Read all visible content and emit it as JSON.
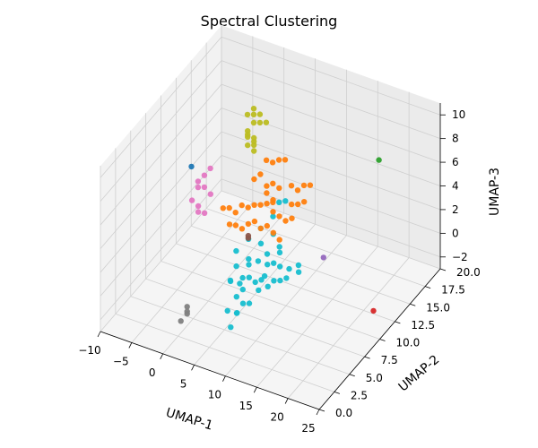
{
  "chart_data": {
    "type": "scatter",
    "projection": "3d",
    "title": "Spectral Clustering",
    "xlabel": "UMAP-1",
    "ylabel": "UMAP-2",
    "zlabel": "UMAP-3",
    "xlim": [
      -10,
      25
    ],
    "ylim": [
      0,
      20
    ],
    "zlim": [
      -3,
      11
    ],
    "x_ticks": [
      "−10",
      "−5",
      "0",
      "5",
      "10",
      "15",
      "20",
      "25"
    ],
    "x_tick_values": [
      -10,
      -5,
      0,
      5,
      10,
      15,
      20,
      25
    ],
    "y_ticks": [
      "0.0",
      "2.5",
      "5.0",
      "7.5",
      "10.0",
      "12.5",
      "15.0",
      "17.5",
      "20.0"
    ],
    "y_tick_values": [
      0,
      2.5,
      5,
      7.5,
      10,
      12.5,
      15,
      17.5,
      20
    ],
    "z_ticks": [
      "−2",
      "0",
      "2",
      "4",
      "6",
      "8",
      "10"
    ],
    "z_tick_values": [
      -2,
      0,
      2,
      4,
      6,
      8,
      10
    ],
    "grid": true,
    "legend": "none",
    "series": [
      {
        "color": "#17becf",
        "points": [
          [
            5,
            6,
            0.5
          ],
          [
            6,
            6.5,
            0.2
          ],
          [
            7,
            7,
            0.6
          ],
          [
            8,
            7,
            0.4
          ],
          [
            9,
            7.5,
            0.8
          ],
          [
            10,
            8,
            0.3
          ],
          [
            6,
            8,
            0.9
          ],
          [
            7,
            8.5,
            1.1
          ],
          [
            8,
            9,
            0.7
          ],
          [
            9,
            9,
            1.0
          ],
          [
            5,
            8,
            -0.4
          ],
          [
            6,
            7,
            -0.6
          ],
          [
            7,
            6,
            -1.0
          ],
          [
            8,
            6,
            -0.8
          ],
          [
            4,
            7,
            -0.2
          ],
          [
            5,
            9,
            0.6
          ],
          [
            10,
            9,
            0.9
          ],
          [
            11,
            9.5,
            0.6
          ],
          [
            12,
            10,
            0.8
          ],
          [
            11,
            8,
            0.5
          ],
          [
            9,
            10,
            1.3
          ],
          [
            8,
            11,
            1.0
          ],
          [
            7,
            10,
            0.8
          ],
          [
            6,
            10,
            1.5
          ],
          [
            5,
            7,
            -1.4
          ],
          [
            6,
            6,
            -2.0
          ],
          [
            5,
            5.5,
            -1.7
          ],
          [
            7,
            5,
            -1.2
          ],
          [
            6,
            5,
            -2.6
          ],
          [
            8,
            8,
            0.0
          ],
          [
            9,
            6.5,
            0.2
          ],
          [
            10,
            7,
            0.4
          ],
          [
            12,
            8,
            0.9
          ],
          [
            13,
            9,
            1.0
          ],
          [
            4,
            8,
            0.4
          ],
          [
            3,
            9,
            0.9
          ],
          [
            4,
            10,
            1.5
          ],
          [
            5,
            11,
            2.0
          ],
          [
            6,
            12,
            2.6
          ],
          [
            7,
            11,
            1.9
          ],
          [
            6,
            13,
            3.2
          ],
          [
            7,
            13,
            3.5
          ]
        ]
      },
      {
        "color": "#ff7f0e",
        "points": [
          [
            -1,
            12,
            2.0
          ],
          [
            0,
            12,
            1.8
          ],
          [
            1,
            11,
            1.5
          ],
          [
            2,
            11,
            1.4
          ],
          [
            3,
            11,
            2.0
          ],
          [
            4,
            11,
            2.4
          ],
          [
            3,
            12,
            3.0
          ],
          [
            4,
            12,
            3.2
          ],
          [
            2,
            12,
            2.6
          ],
          [
            5,
            12,
            3.5
          ],
          [
            6,
            12,
            4.0
          ],
          [
            6,
            13,
            4.4
          ],
          [
            7,
            14,
            4.2
          ],
          [
            8,
            14,
            4.0
          ],
          [
            8,
            13,
            3.4
          ],
          [
            9,
            13,
            3.6
          ],
          [
            5,
            13,
            4.6
          ],
          [
            4,
            13,
            4.2
          ],
          [
            3,
            13,
            5.0
          ],
          [
            4,
            14,
            5.6
          ],
          [
            5,
            14,
            6.0
          ],
          [
            6,
            14,
            6.2
          ],
          [
            3,
            14,
            5.6
          ],
          [
            2,
            13,
            4.4
          ],
          [
            1,
            12,
            2.6
          ],
          [
            7,
            12,
            2.8
          ],
          [
            8,
            12,
            2.6
          ],
          [
            9,
            12,
            3.0
          ],
          [
            5,
            11,
            2.0
          ],
          [
            6,
            11,
            2.4
          ],
          [
            7,
            11,
            2.0
          ],
          [
            10,
            13,
            4.0
          ],
          [
            9,
            14,
            4.6
          ],
          [
            10,
            14,
            4.8
          ],
          [
            4,
            13,
            3.6
          ],
          [
            5,
            13,
            3.0
          ],
          [
            6,
            12,
            3.0
          ],
          [
            0,
            11,
            1.4
          ],
          [
            -2,
            12,
            1.8
          ],
          [
            8,
            11,
            1.6
          ]
        ]
      },
      {
        "color": "#bcbd22",
        "points": [
          [
            0,
            14,
            7.5
          ],
          [
            0,
            14,
            7.0
          ],
          [
            1,
            14,
            6.8
          ],
          [
            0,
            15,
            8.3
          ],
          [
            1,
            15,
            7.8
          ],
          [
            0,
            14,
            6.3
          ],
          [
            1,
            14,
            6.0
          ],
          [
            0,
            15,
            7.6
          ],
          [
            -1,
            15,
            8.1
          ],
          [
            0,
            14,
            7.2
          ],
          [
            1,
            15,
            8.5
          ],
          [
            2,
            15,
            8.0
          ],
          [
            1,
            14,
            7.1
          ],
          [
            0,
            15,
            8.8
          ],
          [
            1,
            14,
            6.5
          ]
        ]
      },
      {
        "color": "#e377c2",
        "points": [
          [
            -5,
            11,
            2.0
          ],
          [
            -6,
            11,
            2.3
          ],
          [
            -5,
            12,
            3.0
          ],
          [
            -6,
            12,
            3.3
          ],
          [
            -5,
            11,
            1.5
          ],
          [
            -4,
            12,
            2.6
          ],
          [
            -5,
            12,
            4.0
          ],
          [
            -4,
            11,
            1.6
          ],
          [
            -6,
            12,
            2.8
          ],
          [
            -5,
            13,
            4.0
          ]
        ]
      },
      {
        "color": "#1f77b4",
        "points": [
          [
            -9,
            14,
            2.8
          ]
        ]
      },
      {
        "color": "#2ca02c",
        "points": [
          [
            21,
            14,
            9.0
          ]
        ]
      },
      {
        "color": "#d62728",
        "points": [
          [
            24,
            10,
            -0.8
          ]
        ]
      },
      {
        "color": "#9467bd",
        "points": [
          [
            16,
            10,
            2.2
          ]
        ]
      },
      {
        "color": "#8c564b",
        "points": [
          [
            3,
            11,
            0.8
          ],
          [
            3,
            11,
            1.0
          ]
        ]
      },
      {
        "color": "#7f7f7f",
        "points": [
          [
            0,
            4,
            -2.0
          ],
          [
            0,
            4,
            -1.4
          ],
          [
            -1,
            4,
            -2.8
          ],
          [
            0,
            4,
            -1.8
          ]
        ]
      }
    ]
  }
}
